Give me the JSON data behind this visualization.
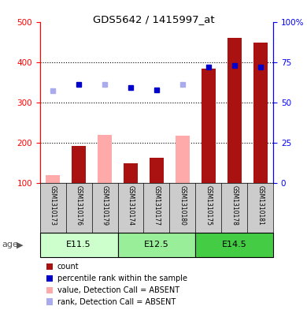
{
  "title": "GDS5642 / 1415997_at",
  "samples": [
    "GSM1310173",
    "GSM1310176",
    "GSM1310179",
    "GSM1310174",
    "GSM1310177",
    "GSM1310180",
    "GSM1310175",
    "GSM1310178",
    "GSM1310181"
  ],
  "groups": [
    {
      "label": "E11.5",
      "indices": [
        0,
        1,
        2
      ],
      "color": "#ccffcc"
    },
    {
      "label": "E12.5",
      "indices": [
        3,
        4,
        5
      ],
      "color": "#99ee99"
    },
    {
      "label": "E14.5",
      "indices": [
        6,
        7,
        8
      ],
      "color": "#44cc44"
    }
  ],
  "count_values": [
    null,
    192,
    null,
    148,
    162,
    null,
    383,
    460,
    448
  ],
  "count_absent": [
    120,
    null,
    null,
    null,
    null,
    null,
    null,
    null,
    null
  ],
  "value_absent": [
    null,
    null,
    220,
    null,
    null,
    218,
    null,
    null,
    null
  ],
  "rank_present": [
    null,
    345,
    null,
    336,
    330,
    null,
    387,
    392,
    387
  ],
  "rank_absent": [
    328,
    null,
    345,
    null,
    null,
    345,
    null,
    null,
    null
  ],
  "ylim_left": [
    100,
    500
  ],
  "ylim_right": [
    0,
    100
  ],
  "yticks_left": [
    100,
    200,
    300,
    400,
    500
  ],
  "yticks_right": [
    0,
    25,
    50,
    75,
    100
  ],
  "bar_color_present": "#aa1111",
  "bar_color_absent": "#ffaaaa",
  "rank_color_present": "#0000cc",
  "rank_color_absent": "#aaaaee",
  "sample_bg": "#cccccc",
  "legend_items": [
    {
      "color": "#aa1111",
      "label": "count"
    },
    {
      "color": "#0000cc",
      "label": "percentile rank within the sample"
    },
    {
      "color": "#ffaaaa",
      "label": "value, Detection Call = ABSENT"
    },
    {
      "color": "#aaaaee",
      "label": "rank, Detection Call = ABSENT"
    }
  ]
}
